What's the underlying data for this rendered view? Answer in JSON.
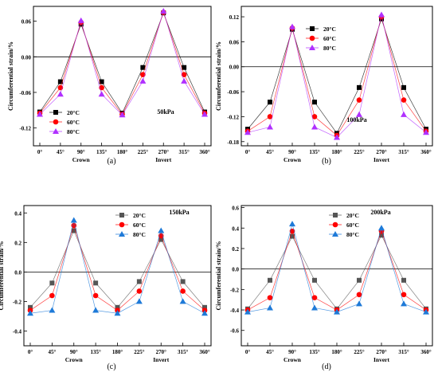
{
  "x_tick_labels": [
    "0°",
    "45°",
    "90°",
    "135°",
    "180°",
    "225°",
    "270°",
    "315°",
    "360°"
  ],
  "chart_data": [
    {
      "type": "line",
      "caption": "(a)",
      "annotation": "50kPa",
      "ylabel": "Circumferential strain/%",
      "xlabel_crown": "Crown",
      "xlabel_invert": "Invert",
      "x": [
        0,
        45,
        90,
        135,
        180,
        225,
        270,
        315,
        360
      ],
      "ylim": [
        -0.15,
        0.085
      ],
      "yticks": [
        0.06,
        0.0,
        -0.06,
        -0.12
      ],
      "ytick_labels": [
        "0.06",
        "0.00",
        "-0.06",
        "-0.12"
      ],
      "legend_position": "bottom-left",
      "series": [
        {
          "name": "20°C",
          "color": "#000000",
          "marker": "square",
          "values": [
            -0.093,
            -0.042,
            0.055,
            -0.042,
            -0.095,
            -0.018,
            0.074,
            -0.018,
            -0.093
          ]
        },
        {
          "name": "60°C",
          "color": "#ff0000",
          "marker": "circle",
          "values": [
            -0.095,
            -0.052,
            0.058,
            -0.052,
            -0.097,
            -0.03,
            0.075,
            -0.03,
            -0.095
          ]
        },
        {
          "name": "80°C",
          "color": "#b030ff",
          "marker": "triangle",
          "values": [
            -0.097,
            -0.063,
            0.061,
            -0.063,
            -0.098,
            -0.041,
            0.077,
            -0.041,
            -0.097
          ]
        }
      ]
    },
    {
      "type": "line",
      "caption": "(b)",
      "annotation": "100kPa",
      "ylabel": "Circumferential strain/%",
      "xlabel_crown": "Crown",
      "xlabel_invert": "Invert",
      "x": [
        0,
        45,
        90,
        135,
        180,
        225,
        270,
        315,
        360
      ],
      "ylim": [
        -0.19,
        0.145
      ],
      "yticks": [
        0.12,
        0.06,
        0.0,
        -0.06,
        -0.12,
        -0.18
      ],
      "ytick_labels": [
        "0.12",
        "0.06",
        "0.00",
        "-0.06",
        "-0.12",
        "-0.18"
      ],
      "legend_position": "top-left",
      "series": [
        {
          "name": "20°C",
          "color": "#000000",
          "marker": "square",
          "values": [
            -0.15,
            -0.085,
            0.09,
            -0.085,
            -0.16,
            -0.05,
            0.115,
            -0.05,
            -0.15
          ]
        },
        {
          "name": "60°C",
          "color": "#ff0000",
          "marker": "circle",
          "values": [
            -0.155,
            -0.12,
            0.093,
            -0.12,
            -0.165,
            -0.08,
            0.12,
            -0.08,
            -0.155
          ]
        },
        {
          "name": "80°C",
          "color": "#b030ff",
          "marker": "triangle",
          "values": [
            -0.158,
            -0.145,
            0.096,
            -0.145,
            -0.17,
            -0.115,
            0.125,
            -0.115,
            -0.158
          ]
        }
      ]
    },
    {
      "type": "line",
      "caption": "(c)",
      "annotation": "150kPa",
      "ylabel": "Circumferential strain/%",
      "xlabel_crown": "Crown",
      "xlabel_invert": "Invert",
      "x": [
        0,
        45,
        90,
        135,
        180,
        225,
        270,
        315,
        360
      ],
      "ylim": [
        -0.5,
        0.45
      ],
      "yticks": [
        0.4,
        0.2,
        0.0,
        -0.2,
        -0.4
      ],
      "ytick_labels": [
        "0.4",
        "0.2",
        "0.0",
        "-0.2",
        "-0.4"
      ],
      "legend_position": "top-center",
      "series": [
        {
          "name": "20°C",
          "color": "#555555",
          "marker": "square",
          "values": [
            -0.24,
            -0.075,
            0.28,
            -0.075,
            -0.24,
            -0.065,
            0.22,
            -0.065,
            -0.24
          ]
        },
        {
          "name": "60°C",
          "color": "#ff0000",
          "marker": "circle",
          "values": [
            -0.26,
            -0.16,
            0.315,
            -0.16,
            -0.26,
            -0.13,
            0.245,
            -0.13,
            -0.26
          ]
        },
        {
          "name": "80°C",
          "color": "#1e7ad8",
          "marker": "triangle",
          "values": [
            -0.28,
            -0.26,
            0.35,
            -0.26,
            -0.28,
            -0.2,
            0.28,
            -0.2,
            -0.28
          ]
        }
      ]
    },
    {
      "type": "line",
      "caption": "(d)",
      "annotation": "200kPa",
      "ylabel": "Circumferential strain/%",
      "xlabel_crown": "Crown",
      "xlabel_invert": "Invert",
      "x": [
        0,
        45,
        90,
        135,
        180,
        225,
        270,
        315,
        360
      ],
      "ylim": [
        -0.75,
        0.62
      ],
      "yticks": [
        0.6,
        0.4,
        0.2,
        0.0,
        -0.2,
        -0.4,
        -0.6
      ],
      "ytick_labels": [
        "0.6",
        "0.4",
        "0.2",
        "0.0",
        "-0.2",
        "-0.4",
        "-0.6"
      ],
      "legend_position": "top-center",
      "series": [
        {
          "name": "20°C",
          "color": "#555555",
          "marker": "square",
          "values": [
            -0.39,
            -0.11,
            0.32,
            -0.11,
            -0.39,
            -0.11,
            0.33,
            -0.11,
            -0.39
          ]
        },
        {
          "name": "60°C",
          "color": "#ff0000",
          "marker": "circle",
          "values": [
            -0.4,
            -0.28,
            0.37,
            -0.28,
            -0.4,
            -0.25,
            0.37,
            -0.25,
            -0.4
          ]
        },
        {
          "name": "80°C",
          "color": "#1e7ad8",
          "marker": "triangle",
          "values": [
            -0.42,
            -0.38,
            0.44,
            -0.38,
            -0.42,
            -0.34,
            0.4,
            -0.34,
            -0.42
          ]
        }
      ]
    }
  ]
}
